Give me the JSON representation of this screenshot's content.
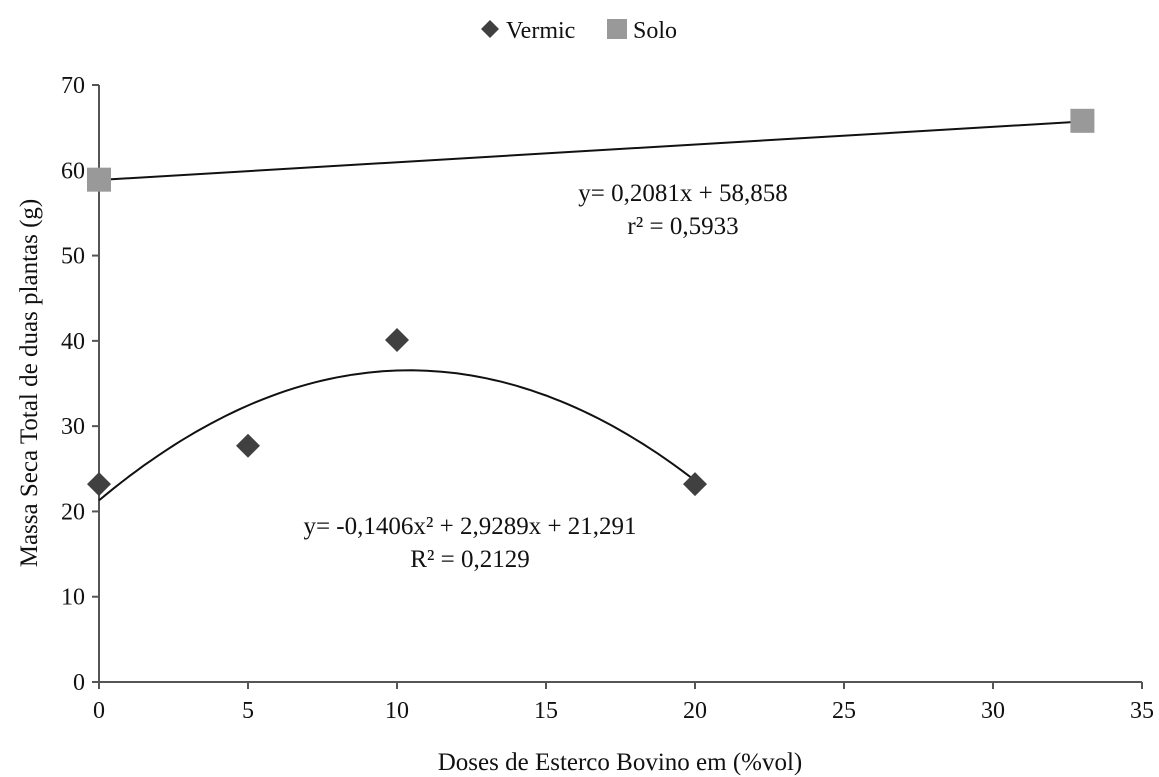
{
  "chart_data": {
    "type": "scatter",
    "xlabel": "Doses de Esterco Bovino em (%vol)",
    "ylabel": "Massa Seca  Total de duas plantas (g)",
    "xlim": [
      0,
      35
    ],
    "ylim": [
      0,
      70
    ],
    "x_ticks": [
      0,
      5,
      10,
      15,
      20,
      25,
      30,
      35
    ],
    "y_ticks": [
      0,
      10,
      20,
      30,
      40,
      50,
      60,
      70
    ],
    "grid": false,
    "legend_position": "top-center",
    "series": [
      {
        "name": "Vermic",
        "marker": "diamond",
        "color": "#404040",
        "x": [
          0,
          5,
          10,
          20
        ],
        "y": [
          23.2,
          27.7,
          40.1,
          23.2
        ],
        "trendline": {
          "type": "polynomial",
          "coefficients": [
            -0.1406,
            2.9289,
            21.291
          ],
          "x_range": [
            0,
            20
          ],
          "equation": "y= -0,1406x² + 2,9289x + 21,291",
          "r2": "R² = 0,2129"
        }
      },
      {
        "name": "Solo",
        "marker": "square",
        "color": "#999999",
        "x": [
          0,
          33
        ],
        "y": [
          58.9,
          65.8
        ],
        "trendline": {
          "type": "linear",
          "coefficients": [
            0.2081,
            58.858
          ],
          "x_range": [
            0,
            33
          ],
          "equation": "y= 0,2081x + 58,858",
          "r2": "r² = 0,5933"
        }
      }
    ]
  }
}
